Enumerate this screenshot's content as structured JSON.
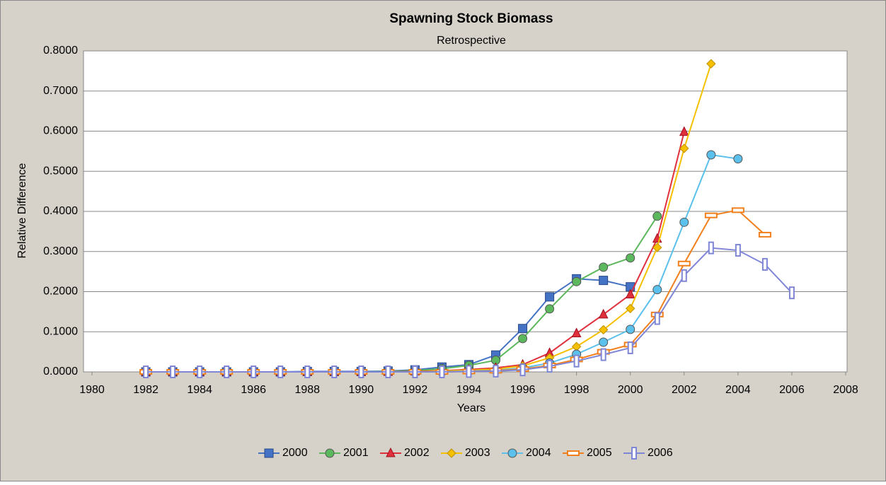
{
  "chart_data": {
    "type": "line",
    "title": "Spawning Stock Biomass",
    "subtitle": "Retrospective",
    "x_label": "Years",
    "y_label": "Relative Difference",
    "x": [
      1982,
      1983,
      1984,
      1985,
      1986,
      1987,
      1988,
      1989,
      1990,
      1991,
      1992,
      1993,
      1994,
      1995,
      1996,
      1997,
      1998,
      1999,
      2000,
      2001,
      2002,
      2003,
      2004,
      2005,
      2006
    ],
    "xlim": [
      1980,
      2008
    ],
    "xticks": [
      1980,
      1982,
      1984,
      1986,
      1988,
      1990,
      1992,
      1994,
      1996,
      1998,
      2000,
      2002,
      2004,
      2006,
      2008
    ],
    "ylim": [
      0,
      0.8
    ],
    "yticks": [
      {
        "value": 0,
        "label": "0.0000"
      },
      {
        "value": 0.1,
        "label": "0.1000"
      },
      {
        "value": 0.2,
        "label": "0.2000"
      },
      {
        "value": 0.3,
        "label": "0.3000"
      },
      {
        "value": 0.4,
        "label": "0.4000"
      },
      {
        "value": 0.5,
        "label": "0.5000"
      },
      {
        "value": 0.6,
        "label": "0.6000"
      },
      {
        "value": 0.7,
        "label": "0.7000"
      },
      {
        "value": 0.8,
        "label": "0.8000"
      }
    ],
    "grid": true,
    "legend": "bottom",
    "series": [
      {
        "name": "2000",
        "color": "#4472c4",
        "marker": "square",
        "values": [
          0,
          0,
          0,
          0,
          0,
          0,
          0.001,
          0.001,
          0.001,
          0.002,
          0.005,
          0.012,
          0.018,
          0.042,
          0.108,
          0.187,
          0.232,
          0.228,
          0.212,
          null,
          null,
          null,
          null,
          null,
          null
        ]
      },
      {
        "name": "2001",
        "color": "#5cb85c",
        "marker": "circle",
        "values": [
          0,
          0,
          0,
          0,
          0,
          0,
          0,
          0,
          0,
          0.001,
          0.003,
          0.008,
          0.016,
          0.029,
          0.083,
          0.157,
          0.225,
          0.261,
          0.284,
          0.388,
          null,
          null,
          null,
          null,
          null
        ]
      },
      {
        "name": "2002",
        "color": "#e0303c",
        "marker": "triangle",
        "values": [
          0,
          0,
          0,
          0,
          0,
          0,
          0,
          0,
          0,
          0,
          0.001,
          0.003,
          0.006,
          0.01,
          0.018,
          0.047,
          0.096,
          0.143,
          0.193,
          0.332,
          0.598,
          null,
          null,
          null,
          null
        ]
      },
      {
        "name": "2003",
        "color": "#f5c000",
        "marker": "diamond",
        "values": [
          0,
          0,
          0,
          0,
          0,
          0,
          0,
          0,
          0,
          0,
          0,
          0.002,
          0.004,
          0.007,
          0.015,
          0.035,
          0.063,
          0.105,
          0.158,
          0.31,
          0.557,
          0.768,
          null,
          null,
          null
        ]
      },
      {
        "name": "2004",
        "color": "#5bc0eb",
        "marker": "circle",
        "values": [
          0,
          0,
          0,
          0,
          0,
          0,
          0,
          0,
          0,
          0,
          0,
          0,
          0.002,
          0.004,
          0.01,
          0.022,
          0.044,
          0.074,
          0.106,
          0.205,
          0.373,
          0.541,
          0.531,
          null,
          null
        ]
      },
      {
        "name": "2005",
        "color": "#f07f1c",
        "marker": "hbar",
        "values": [
          0,
          0,
          0,
          0,
          0,
          0,
          0,
          0,
          0,
          0,
          0,
          0,
          0.001,
          0.003,
          0.007,
          0.016,
          0.031,
          0.05,
          0.068,
          0.143,
          0.27,
          0.39,
          0.403,
          0.342,
          null
        ]
      },
      {
        "name": "2006",
        "color": "#7f86d6",
        "marker": "vbar",
        "values": [
          0,
          0,
          0,
          0,
          0,
          0,
          0,
          0,
          0,
          0,
          0,
          0,
          0.001,
          0.002,
          0.005,
          0.014,
          0.027,
          0.043,
          0.06,
          0.133,
          0.24,
          0.309,
          0.303,
          0.268,
          0.197
        ]
      }
    ]
  }
}
